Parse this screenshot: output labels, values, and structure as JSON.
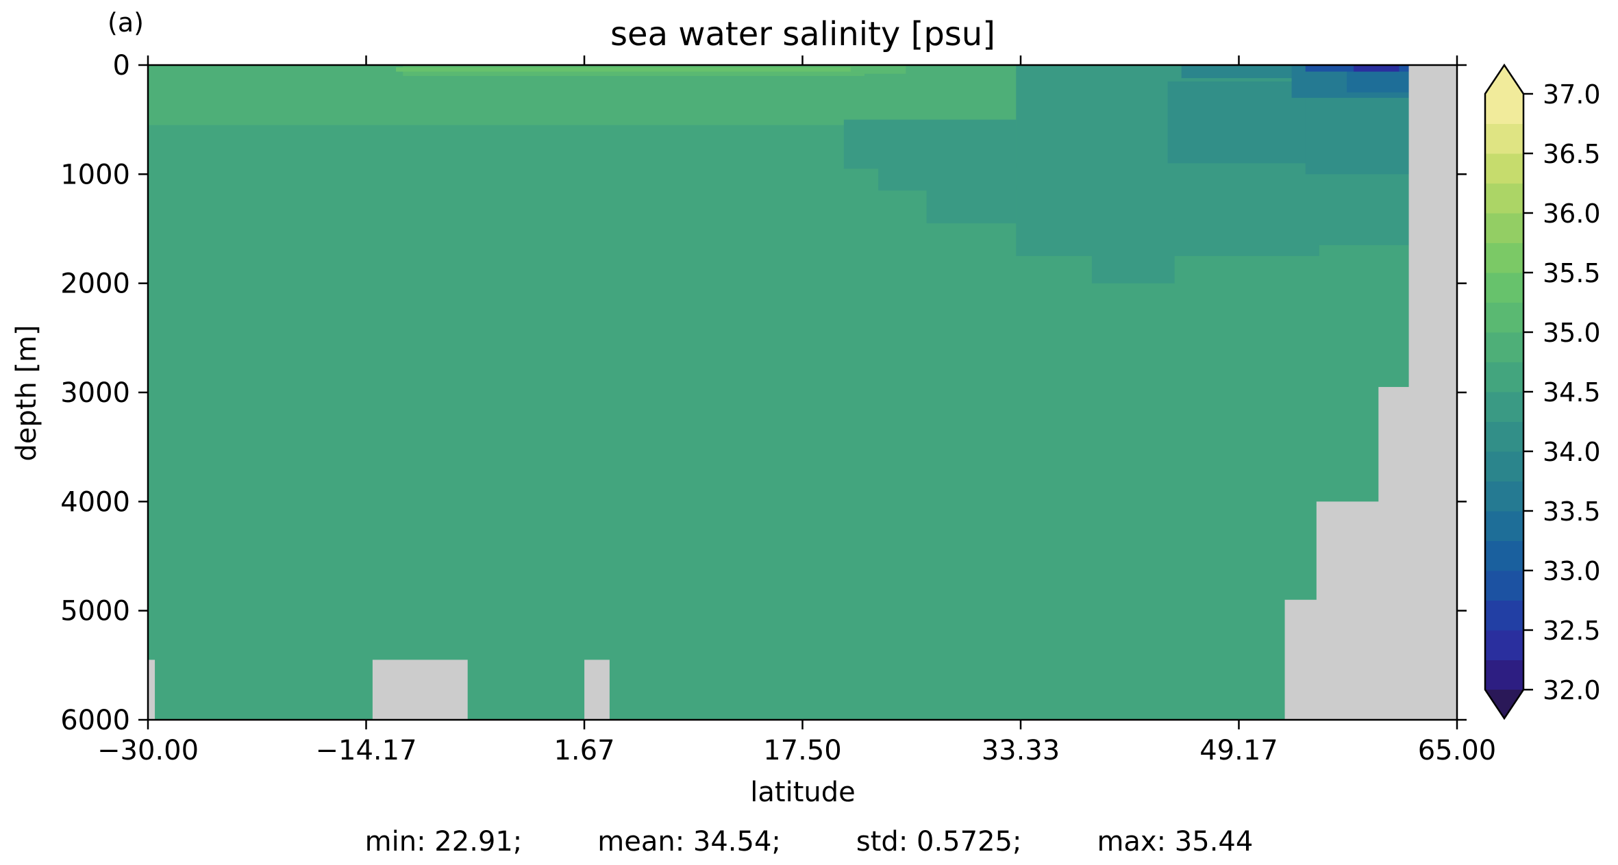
{
  "panel_label": "(a)",
  "chart_data": {
    "type": "heatmap",
    "title": "sea water salinity [psu]",
    "xlabel": "latitude",
    "ylabel": "depth [m]",
    "xlim": [
      -30.0,
      65.0
    ],
    "ylim": [
      6000,
      0
    ],
    "x_ticks": [
      "−30.00",
      "−14.17",
      "1.67",
      "17.50",
      "33.33",
      "49.17",
      "65.00"
    ],
    "y_ticks": [
      "0",
      "1000",
      "2000",
      "3000",
      "4000",
      "5000",
      "6000"
    ],
    "colorbar": {
      "levels": [
        32.0,
        32.25,
        32.5,
        32.75,
        33.0,
        33.25,
        33.5,
        33.75,
        34.0,
        34.25,
        34.5,
        34.75,
        35.0,
        35.25,
        35.5,
        35.75,
        36.0,
        36.25,
        36.5,
        36.75,
        37.0
      ],
      "tick_labels": [
        "32.0",
        "32.5",
        "33.0",
        "33.5",
        "34.0",
        "34.5",
        "35.0",
        "35.5",
        "36.0",
        "36.5",
        "37.0"
      ],
      "tick_values": [
        32.0,
        32.5,
        33.0,
        33.5,
        34.0,
        34.5,
        35.0,
        35.5,
        36.0,
        36.5,
        37.0
      ],
      "colors": [
        "#2a1858",
        "#2d1e82",
        "#2a2f9e",
        "#223fa4",
        "#1c52a2",
        "#1a609e",
        "#1e6e98",
        "#257a92",
        "#2b858c",
        "#328f88",
        "#3a9a84",
        "#43a57e",
        "#4eaf78",
        "#5ab972",
        "#67c26c",
        "#7bc966",
        "#93ce64",
        "#acd566",
        "#c6dc6d",
        "#dfe483",
        "#f1eb9b"
      ],
      "extend": "both"
    },
    "background_value": 34.6,
    "regions": [
      {
        "lat": [
          -30.0,
          65.0
        ],
        "depth": [
          0,
          550
        ],
        "value": 34.85
      },
      {
        "lat": [
          -11.5,
          22.0
        ],
        "depth": [
          0,
          100
        ],
        "value": 35.2
      },
      {
        "lat": [
          -12.0,
          22.0
        ],
        "depth": [
          20,
          60
        ],
        "value": 35.3
      },
      {
        "lat": [
          21.0,
          25.0
        ],
        "depth": [
          0,
          80
        ],
        "value": 35.15
      },
      {
        "lat": [
          33.0,
          65.0
        ],
        "depth": [
          0,
          550
        ],
        "value": 34.45
      },
      {
        "lat": [
          20.5,
          33.0
        ],
        "depth": [
          500,
          950
        ],
        "value": 34.45
      },
      {
        "lat": [
          23.0,
          33.0
        ],
        "depth": [
          900,
          1150
        ],
        "value": 34.45
      },
      {
        "lat": [
          26.5,
          33.0
        ],
        "depth": [
          1100,
          1450
        ],
        "value": 34.45
      },
      {
        "lat": [
          33.0,
          55.0
        ],
        "depth": [
          550,
          1750
        ],
        "value": 34.45
      },
      {
        "lat": [
          38.5,
          44.5
        ],
        "depth": [
          1400,
          2000
        ],
        "value": 34.45
      },
      {
        "lat": [
          55.0,
          61.5
        ],
        "depth": [
          550,
          1650
        ],
        "value": 34.45
      },
      {
        "lat": [
          37.0,
          61.5
        ],
        "depth": [
          50,
          700
        ],
        "value": 34.3
      },
      {
        "lat": [
          44.0,
          61.5
        ],
        "depth": [
          150,
          900
        ],
        "value": 34.2
      },
      {
        "lat": [
          54.0,
          61.5
        ],
        "depth": [
          100,
          1000
        ],
        "value": 34.05
      },
      {
        "lat": [
          45.0,
          61.5
        ],
        "depth": [
          0,
          120
        ],
        "value": 33.9
      },
      {
        "lat": [
          53.0,
          61.5
        ],
        "depth": [
          0,
          300
        ],
        "value": 33.65
      },
      {
        "lat": [
          57.0,
          61.5
        ],
        "depth": [
          0,
          250
        ],
        "value": 33.35
      },
      {
        "lat": [
          54.0,
          61.5
        ],
        "depth": [
          0,
          60
        ],
        "value": 32.9
      },
      {
        "lat": [
          57.5,
          60.8
        ],
        "depth": [
          0,
          60
        ],
        "value": 32.35
      }
    ],
    "masks": [
      {
        "lat": [
          -30.0,
          -29.5
        ],
        "depth": [
          5450,
          6000
        ]
      },
      {
        "lat": [
          -13.7,
          -6.8
        ],
        "depth": [
          5450,
          6000
        ]
      },
      {
        "lat": [
          1.67,
          3.5
        ],
        "depth": [
          5450,
          6000
        ]
      },
      {
        "lat": [
          52.5,
          65.0
        ],
        "depth": [
          4900,
          6000
        ]
      },
      {
        "lat": [
          54.8,
          65.0
        ],
        "depth": [
          4000,
          6000
        ]
      },
      {
        "lat": [
          59.3,
          65.0
        ],
        "depth": [
          2950,
          6000
        ]
      },
      {
        "lat": [
          61.5,
          65.0
        ],
        "depth": [
          0,
          6000
        ]
      }
    ],
    "mask_color": "#cccccc",
    "stats": {
      "min": "min: 22.91;",
      "mean": "mean: 34.54;",
      "std": "std: 0.5725;",
      "max": "max: 35.44"
    }
  }
}
